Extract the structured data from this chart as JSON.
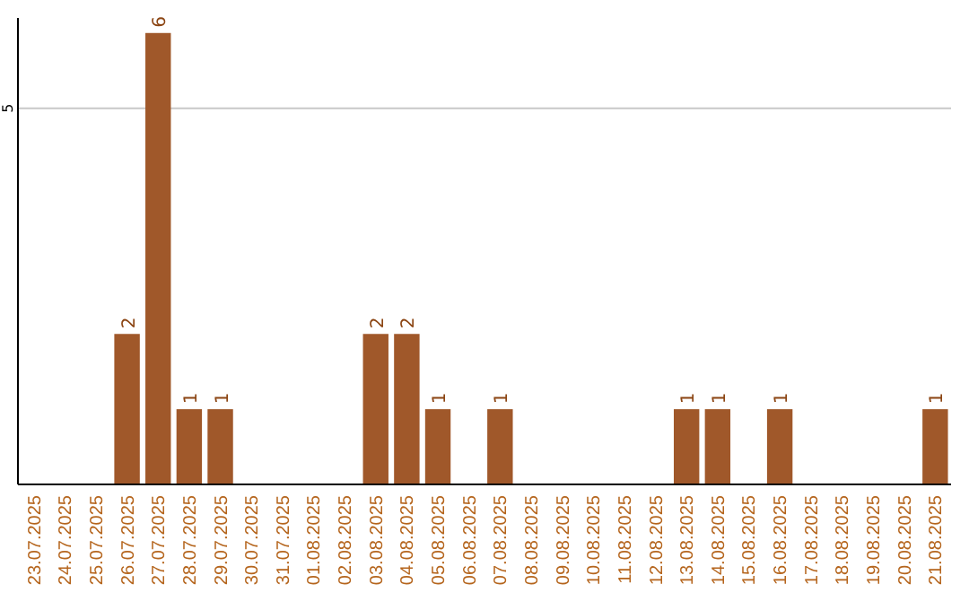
{
  "chart_data": {
    "type": "bar",
    "categories": [
      "23.07.2025",
      "24.07.2025",
      "25.07.2025",
      "26.07.2025",
      "27.07.2025",
      "28.07.2025",
      "29.07.2025",
      "30.07.2025",
      "31.07.2025",
      "01.08.2025",
      "02.08.2025",
      "03.08.2025",
      "04.08.2025",
      "05.08.2025",
      "06.08.2025",
      "07.08.2025",
      "08.08.2025",
      "09.08.2025",
      "10.08.2025",
      "11.08.2025",
      "12.08.2025",
      "13.08.2025",
      "14.08.2025",
      "15.08.2025",
      "16.08.2025",
      "17.08.2025",
      "18.08.2025",
      "19.08.2025",
      "20.08.2025",
      "21.08.2025"
    ],
    "values": [
      0,
      0,
      0,
      2,
      6,
      1,
      1,
      0,
      0,
      0,
      0,
      2,
      2,
      1,
      0,
      1,
      0,
      0,
      0,
      0,
      0,
      1,
      1,
      0,
      1,
      0,
      0,
      0,
      0,
      1
    ],
    "value_labels": [
      null,
      null,
      null,
      "2",
      "6",
      "1",
      "1",
      null,
      null,
      null,
      null,
      "2",
      "2",
      "1",
      null,
      "1",
      null,
      null,
      null,
      null,
      null,
      "1",
      "1",
      null,
      "1",
      null,
      null,
      null,
      null,
      "1"
    ],
    "color": "#a0582a",
    "ylim": [
      0,
      6.2
    ],
    "yticks": [
      5
    ],
    "grid": "y"
  }
}
